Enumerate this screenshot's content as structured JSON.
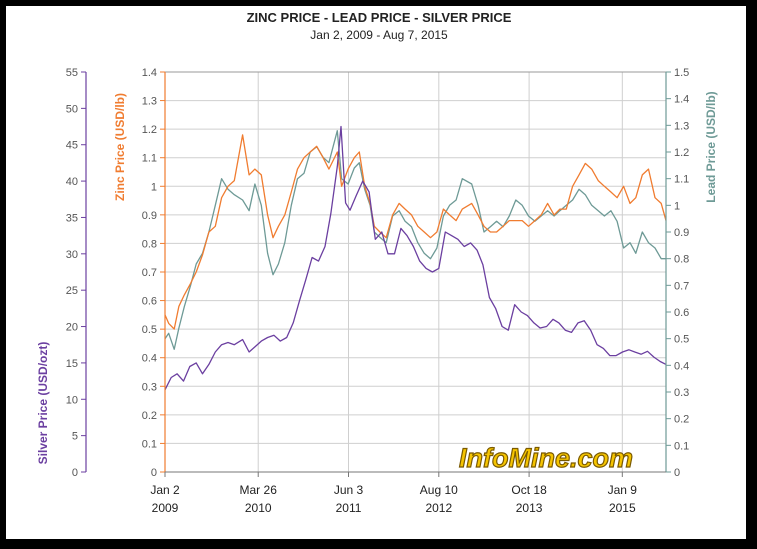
{
  "chart_data": {
    "type": "line",
    "title": "ZINC PRICE - LEAD PRICE - SILVER PRICE",
    "subtitle": "Jan 2, 2009 - Aug 7, 2015",
    "watermark": "InfoMine.com",
    "x_axis": {
      "ticks": [
        {
          "date": "2009-01-02",
          "line1": "Jan 2",
          "line2": "2009"
        },
        {
          "date": "2010-03-26",
          "line1": "Mar 26",
          "line2": "2010"
        },
        {
          "date": "2011-06-03",
          "line1": "Jun 3",
          "line2": "2011"
        },
        {
          "date": "2012-08-10",
          "line1": "Aug 10",
          "line2": "2012"
        },
        {
          "date": "2013-10-18",
          "line1": "Oct 18",
          "line2": "2013"
        },
        {
          "date": "2015-01-09",
          "line1": "Jan 9",
          "line2": "2015"
        }
      ],
      "range": [
        "2009-01-02",
        "2015-08-07"
      ]
    },
    "axes": {
      "silver": {
        "label": "Silver Price (USD/ozt)",
        "min": 0,
        "max": 55,
        "step": 5,
        "color": "#6b3fa0",
        "side": "left-outer",
        "tick_labels": [
          "0",
          "5",
          "10",
          "15",
          "20",
          "25",
          "30",
          "35",
          "40",
          "45",
          "50",
          "55"
        ]
      },
      "zinc": {
        "label": "Zinc Price (USD/lb)",
        "min": 0,
        "max": 1.4,
        "step": 0.1,
        "color": "#f07c30",
        "side": "left-inner",
        "tick_labels": [
          "0",
          "0.1",
          "0.2",
          "0.3",
          "0.4",
          "0.5",
          "0.6",
          "0.7",
          "0.8",
          "0.9",
          "1",
          "1.1",
          "1.2",
          "1.3",
          "1.4"
        ]
      },
      "lead": {
        "label": "Lead Price (USD/lb)",
        "min": 0,
        "max": 1.5,
        "step": 0.1,
        "color": "#6e9a96",
        "side": "right",
        "tick_labels": [
          "0",
          "0.1",
          "0.2",
          "0.3",
          "0.4",
          "0.5",
          "0.6",
          "0.7",
          "0.8",
          "0.9",
          "1",
          "1.1",
          "1.2",
          "1.3",
          "1.4",
          "1.5"
        ]
      }
    },
    "grid": true,
    "series": [
      {
        "axis": "lead",
        "color": "#6e9a96",
        "x": [
          "2009-01-02",
          "2009-01-20",
          "2009-02-15",
          "2009-03-10",
          "2009-04-05",
          "2009-05-05",
          "2009-06-01",
          "2009-07-01",
          "2009-08-01",
          "2009-09-01",
          "2009-10-01",
          "2009-11-01",
          "2009-12-01",
          "2010-01-10",
          "2010-02-10",
          "2010-03-10",
          "2010-04-10",
          "2010-05-10",
          "2010-06-05",
          "2010-07-01",
          "2010-08-01",
          "2010-09-01",
          "2010-10-01",
          "2010-11-01",
          "2010-12-01",
          "2011-01-01",
          "2011-02-01",
          "2011-03-01",
          "2011-04-10",
          "2011-05-01",
          "2011-06-01",
          "2011-07-01",
          "2011-07-25",
          "2011-08-20",
          "2011-09-15",
          "2011-10-05",
          "2011-11-01",
          "2011-12-01",
          "2012-01-01",
          "2012-02-01",
          "2012-03-01",
          "2012-04-01",
          "2012-05-01",
          "2012-06-01",
          "2012-07-01",
          "2012-08-01",
          "2012-09-01",
          "2012-10-01",
          "2012-11-01",
          "2012-12-01",
          "2013-01-15",
          "2013-02-15",
          "2013-03-15",
          "2013-04-15",
          "2013-05-15",
          "2013-06-15",
          "2013-07-15",
          "2013-08-15",
          "2013-09-15",
          "2013-10-15",
          "2013-11-15",
          "2013-12-15",
          "2014-01-15",
          "2014-02-15",
          "2014-03-15",
          "2014-04-15",
          "2014-05-15",
          "2014-06-15",
          "2014-07-15",
          "2014-08-15",
          "2014-09-15",
          "2014-10-15",
          "2014-11-15",
          "2014-12-15",
          "2015-01-15",
          "2015-02-15",
          "2015-03-15",
          "2015-04-15",
          "2015-05-15",
          "2015-06-15",
          "2015-07-15",
          "2015-08-07"
        ],
        "values": [
          0.5,
          0.52,
          0.46,
          0.54,
          0.62,
          0.7,
          0.78,
          0.82,
          0.9,
          1.0,
          1.1,
          1.06,
          1.04,
          1.02,
          0.98,
          1.08,
          1.0,
          0.82,
          0.74,
          0.78,
          0.86,
          1.0,
          1.1,
          1.12,
          1.2,
          1.22,
          1.18,
          1.16,
          1.28,
          1.1,
          1.08,
          1.14,
          1.16,
          1.06,
          1.0,
          0.9,
          0.88,
          0.86,
          0.96,
          0.98,
          0.94,
          0.92,
          0.86,
          0.82,
          0.8,
          0.84,
          0.96,
          1.0,
          1.02,
          1.1,
          1.08,
          1.0,
          0.9,
          0.92,
          0.94,
          0.92,
          0.96,
          1.02,
          1.0,
          0.96,
          0.94,
          0.96,
          0.98,
          0.96,
          0.98,
          1.0,
          1.02,
          1.06,
          1.04,
          1.0,
          0.98,
          0.96,
          0.98,
          0.94,
          0.84,
          0.86,
          0.82,
          0.9,
          0.86,
          0.84,
          0.8,
          0.8
        ]
      },
      {
        "axis": "zinc",
        "color": "#f07c30",
        "x": [
          "2009-01-02",
          "2009-01-20",
          "2009-02-15",
          "2009-03-10",
          "2009-04-05",
          "2009-05-05",
          "2009-06-01",
          "2009-07-01",
          "2009-08-01",
          "2009-09-01",
          "2009-10-01",
          "2009-11-01",
          "2009-12-01",
          "2010-01-10",
          "2010-02-10",
          "2010-03-10",
          "2010-04-10",
          "2010-05-10",
          "2010-06-05",
          "2010-07-01",
          "2010-08-01",
          "2010-09-01",
          "2010-10-01",
          "2010-11-01",
          "2010-12-01",
          "2011-01-01",
          "2011-02-01",
          "2011-03-01",
          "2011-04-10",
          "2011-05-01",
          "2011-06-01",
          "2011-07-01",
          "2011-07-25",
          "2011-08-20",
          "2011-09-15",
          "2011-10-05",
          "2011-11-01",
          "2011-12-01",
          "2012-01-01",
          "2012-02-01",
          "2012-03-01",
          "2012-04-01",
          "2012-05-01",
          "2012-06-01",
          "2012-07-01",
          "2012-08-01",
          "2012-09-01",
          "2012-10-01",
          "2012-11-01",
          "2012-12-01",
          "2013-01-15",
          "2013-02-15",
          "2013-03-15",
          "2013-04-15",
          "2013-05-15",
          "2013-06-15",
          "2013-07-15",
          "2013-08-15",
          "2013-09-15",
          "2013-10-15",
          "2013-11-15",
          "2013-12-15",
          "2014-01-15",
          "2014-02-15",
          "2014-03-15",
          "2014-04-15",
          "2014-05-15",
          "2014-06-15",
          "2014-07-15",
          "2014-08-15",
          "2014-09-15",
          "2014-10-15",
          "2014-11-15",
          "2014-12-15",
          "2015-01-15",
          "2015-02-15",
          "2015-03-15",
          "2015-04-15",
          "2015-05-15",
          "2015-06-15",
          "2015-07-15",
          "2015-08-07"
        ],
        "values": [
          0.55,
          0.52,
          0.5,
          0.58,
          0.62,
          0.66,
          0.7,
          0.76,
          0.84,
          0.86,
          0.96,
          1.0,
          1.02,
          1.18,
          1.04,
          1.06,
          1.04,
          0.9,
          0.82,
          0.86,
          0.9,
          0.98,
          1.06,
          1.1,
          1.12,
          1.14,
          1.1,
          1.06,
          1.12,
          1.0,
          1.06,
          1.1,
          1.12,
          1.0,
          0.94,
          0.86,
          0.84,
          0.82,
          0.9,
          0.94,
          0.92,
          0.9,
          0.86,
          0.84,
          0.82,
          0.84,
          0.92,
          0.9,
          0.88,
          0.92,
          0.94,
          0.9,
          0.86,
          0.84,
          0.84,
          0.86,
          0.88,
          0.88,
          0.88,
          0.86,
          0.88,
          0.9,
          0.94,
          0.9,
          0.92,
          0.92,
          1.0,
          1.04,
          1.08,
          1.06,
          1.02,
          1.0,
          0.98,
          0.96,
          1.0,
          0.94,
          0.96,
          1.04,
          1.06,
          0.96,
          0.94,
          0.88
        ]
      },
      {
        "axis": "silver",
        "color": "#6b3fa0",
        "x": [
          "2009-01-02",
          "2009-02-01",
          "2009-03-01",
          "2009-04-01",
          "2009-05-01",
          "2009-06-01",
          "2009-07-01",
          "2009-08-01",
          "2009-09-01",
          "2009-10-01",
          "2009-11-01",
          "2009-12-01",
          "2010-01-10",
          "2010-02-10",
          "2010-03-10",
          "2010-04-10",
          "2010-05-10",
          "2010-06-10",
          "2010-07-10",
          "2010-08-10",
          "2010-09-10",
          "2010-10-10",
          "2010-11-10",
          "2010-12-10",
          "2011-01-10",
          "2011-02-10",
          "2011-03-10",
          "2011-04-10",
          "2011-04-28",
          "2011-05-20",
          "2011-06-10",
          "2011-07-10",
          "2011-08-10",
          "2011-09-10",
          "2011-10-10",
          "2011-11-10",
          "2011-12-10",
          "2012-01-10",
          "2012-02-10",
          "2012-03-10",
          "2012-04-10",
          "2012-05-10",
          "2012-06-10",
          "2012-07-10",
          "2012-08-10",
          "2012-09-10",
          "2012-10-10",
          "2012-11-10",
          "2012-12-10",
          "2013-01-10",
          "2013-02-10",
          "2013-03-10",
          "2013-04-10",
          "2013-05-10",
          "2013-06-10",
          "2013-07-10",
          "2013-08-10",
          "2013-09-10",
          "2013-10-10",
          "2013-11-10",
          "2013-12-10",
          "2014-01-10",
          "2014-02-10",
          "2014-03-10",
          "2014-04-10",
          "2014-05-10",
          "2014-06-10",
          "2014-07-10",
          "2014-08-10",
          "2014-09-10",
          "2014-10-10",
          "2014-11-10",
          "2014-12-10",
          "2015-01-10",
          "2015-02-10",
          "2015-03-10",
          "2015-04-10",
          "2015-05-10",
          "2015-06-10",
          "2015-07-10",
          "2015-08-07"
        ],
        "values": [
          11.3,
          13.0,
          13.5,
          12.5,
          14.5,
          15.0,
          13.5,
          14.8,
          16.5,
          17.5,
          17.8,
          17.5,
          18.2,
          16.5,
          17.2,
          18.0,
          18.5,
          18.8,
          18.0,
          18.5,
          20.5,
          23.5,
          26.5,
          29.5,
          29.0,
          31.0,
          35.5,
          42.0,
          47.5,
          37.0,
          36.0,
          38.0,
          40.0,
          38.5,
          32.0,
          33.0,
          30.0,
          30.0,
          33.5,
          32.5,
          31.0,
          29.0,
          28.0,
          27.5,
          28.0,
          33.0,
          32.5,
          32.0,
          31.0,
          31.5,
          30.5,
          28.5,
          24.0,
          22.5,
          20.0,
          19.5,
          23.0,
          22.0,
          21.5,
          20.5,
          19.8,
          20.0,
          21.0,
          20.5,
          19.5,
          19.2,
          20.5,
          20.8,
          19.5,
          17.5,
          17.0,
          16.0,
          16.0,
          16.5,
          16.8,
          16.5,
          16.2,
          16.6,
          15.8,
          15.2,
          14.8
        ]
      }
    ]
  }
}
